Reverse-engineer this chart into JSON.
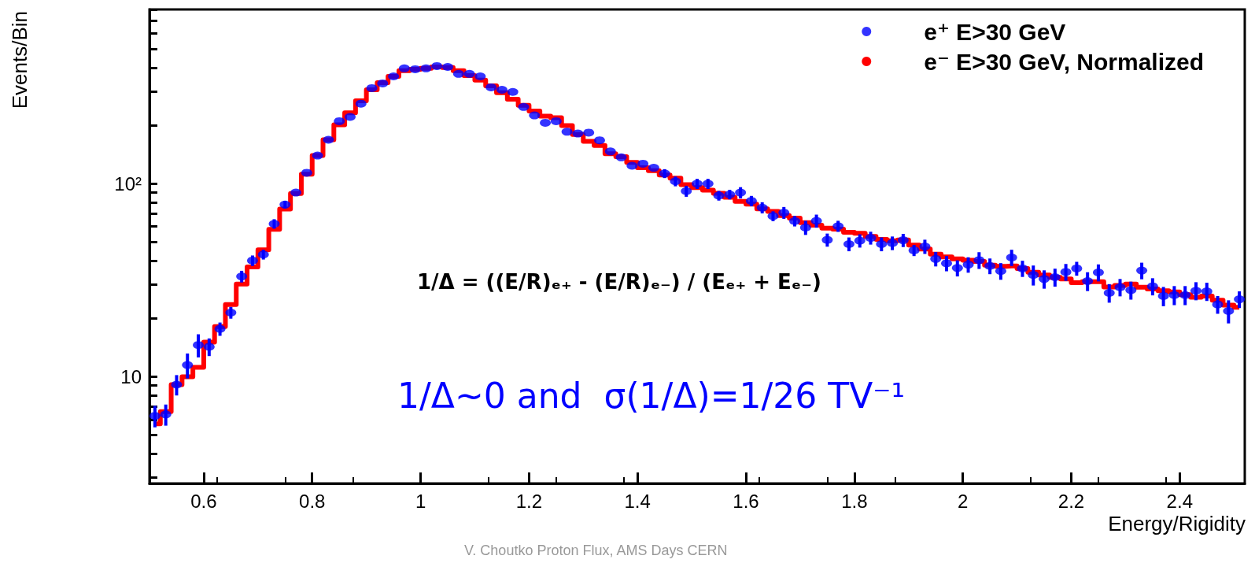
{
  "chart_data": {
    "type": "scatter",
    "xlabel": "Energy/Rigidity",
    "ylabel": "Events/Bin",
    "annotations": [
      "1/Δ = ((E/R)ₑ₊ - (E/R)ₑ₋) / (Eₑ₊ + Eₑ₋)",
      "1/Δ~0 and  σ(1/Δ)=1/26 TV⁻¹",
      "V. Choutko Proton Flux, AMS Days CERN"
    ],
    "x": [
      0.51,
      0.53,
      0.55,
      0.57,
      0.59,
      0.61,
      0.63,
      0.65,
      0.67,
      0.69,
      0.71,
      0.73,
      0.75,
      0.77,
      0.79,
      0.81,
      0.83,
      0.85,
      0.87,
      0.89,
      0.91,
      0.93,
      0.95,
      0.97,
      0.99,
      1.01,
      1.03,
      1.05,
      1.07,
      1.09,
      1.11,
      1.13,
      1.15,
      1.17,
      1.19,
      1.21,
      1.23,
      1.25,
      1.27,
      1.29,
      1.31,
      1.33,
      1.35,
      1.37,
      1.39,
      1.41,
      1.43,
      1.45,
      1.47,
      1.49,
      1.51,
      1.53,
      1.55,
      1.57,
      1.59,
      1.61,
      1.63,
      1.65,
      1.67,
      1.69,
      1.71,
      1.73,
      1.75,
      1.77,
      1.79,
      1.81,
      1.83,
      1.85,
      1.87,
      1.89,
      1.91,
      1.93,
      1.95,
      1.97,
      1.99,
      2.01,
      2.03,
      2.05,
      2.07,
      2.09,
      2.11,
      2.13,
      2.15,
      2.17,
      2.19,
      2.21,
      2.23,
      2.25,
      2.27,
      2.29,
      2.31,
      2.33,
      2.35,
      2.37,
      2.39,
      2.41,
      2.43,
      2.45,
      2.47,
      2.49,
      2.51
    ],
    "series": [
      {
        "name": "e⁻ E>30 GeV, Normalized",
        "type": "step",
        "color": "#ff0000",
        "marker": "none",
        "values": [
          5.7,
          6.6,
          9.1,
          10.0,
          11.2,
          15.1,
          18.2,
          23.7,
          30.2,
          37.1,
          45.5,
          58,
          74,
          89,
          112,
          140,
          169,
          202,
          233,
          269,
          307,
          334,
          360,
          385,
          392,
          396,
          403,
          400,
          385,
          363,
          344,
          322,
          296,
          274,
          255,
          238,
          224,
          220,
          200,
          180,
          166,
          158,
          143,
          138,
          129,
          121,
          117,
          111,
          107,
          98.9,
          95.6,
          92.7,
          89.3,
          85.2,
          81,
          78.4,
          74.2,
          71.9,
          68.4,
          66.3,
          62.9,
          61,
          58.9,
          58.2,
          56,
          55.4,
          53.3,
          51.5,
          50.7,
          51.2,
          48.1,
          45.9,
          43.2,
          41.8,
          40.8,
          40.2,
          39.6,
          37.9,
          37.3,
          37.5,
          36.4,
          34.8,
          33.7,
          32.7,
          32.1,
          30.7,
          31.1,
          31.1,
          29.2,
          29.7,
          30.2,
          29.1,
          28.5,
          27.9,
          27.5,
          26.6,
          25.8,
          26.2,
          24.9,
          23.5,
          22.9
        ]
      },
      {
        "name": "e⁺ E>30 GeV",
        "color": "#0000ff",
        "marker": "circle",
        "values": [
          6.27,
          6.38,
          9.1,
          11.5,
          14.6,
          14.3,
          17.7,
          21.5,
          33.1,
          40,
          43,
          62,
          78,
          90,
          114,
          140,
          169,
          211,
          222,
          260,
          313,
          331,
          360,
          396,
          392,
          396,
          407,
          403,
          371,
          371,
          360,
          316,
          307,
          299,
          250,
          226,
          207,
          211,
          186,
          182,
          184,
          168,
          147,
          137,
          124,
          127,
          121,
          113,
          103,
          91.6,
          100,
          100,
          86.8,
          88,
          90,
          81.5,
          75.2,
          68,
          70.8,
          64.1,
          59.3,
          64.2,
          51.2,
          60.3,
          48.7,
          50.7,
          52.4,
          48.7,
          49.3,
          51,
          45.2,
          47.3,
          40.8,
          38.7,
          36.6,
          38.1,
          40.2,
          37.5,
          35.3,
          41.5,
          36.4,
          33.7,
          32.1,
          32.8,
          34.9,
          36.4,
          31.3,
          34.7,
          27.2,
          29.1,
          28.1,
          35.5,
          29.4,
          26.2,
          26.5,
          26.5,
          27.9,
          27.7,
          23.7,
          21.9,
          25.2
        ],
        "errors": [
          0.8,
          0.8,
          1.1,
          1.7,
          2,
          1.5,
          1.4,
          1.5,
          2.3,
          2.5,
          2.5,
          3.5,
          3.5,
          null,
          null,
          null,
          null,
          null,
          null,
          null,
          null,
          null,
          null,
          null,
          null,
          null,
          null,
          null,
          null,
          null,
          null,
          null,
          null,
          null,
          null,
          null,
          null,
          null,
          null,
          null,
          null,
          null,
          null,
          null,
          null,
          null,
          null,
          6,
          6,
          6,
          6,
          6,
          5,
          5,
          6,
          5,
          5,
          4,
          5,
          4,
          5,
          5,
          4,
          4,
          4,
          4,
          4,
          4,
          4,
          4,
          3,
          4,
          3.5,
          3.5,
          3.5,
          3.5,
          4,
          3.5,
          3.5,
          4,
          3.5,
          4,
          3.5,
          3.5,
          3.5,
          3,
          3.5,
          3.5,
          3,
          3,
          3,
          3.5,
          3,
          3,
          3,
          3,
          3,
          3,
          2.5,
          3,
          2.5
        ]
      }
    ],
    "log": "y",
    "xlim": [
      0.5,
      2.52
    ],
    "xticks": [
      0.6,
      0.8,
      1,
      1.2,
      1.4,
      1.6,
      1.8,
      2,
      2.2,
      2.4
    ],
    "ylim": [
      2.8,
      800
    ],
    "yticks": [
      {
        "value": 3,
        "label": null
      },
      {
        "value": 4,
        "label": null
      },
      {
        "value": 5,
        "label": null
      },
      {
        "value": 6,
        "label": null
      },
      {
        "value": 7,
        "label": null
      },
      {
        "value": 8,
        "label": null
      },
      {
        "value": 9,
        "label": null
      },
      10,
      {
        "value": 20,
        "label": null
      },
      {
        "value": 30,
        "label": null
      },
      {
        "value": 40,
        "label": null
      },
      {
        "value": 50,
        "label": null
      },
      {
        "value": 60,
        "label": null
      },
      {
        "value": 70,
        "label": null
      },
      {
        "value": 80,
        "label": null
      },
      {
        "value": 90,
        "label": null
      },
      {
        "value": 100,
        "label": "10²"
      },
      {
        "value": 200,
        "label": null
      },
      {
        "value": 300,
        "label": null
      },
      {
        "value": 400,
        "label": null
      },
      {
        "value": 500,
        "label": null
      },
      {
        "value": 600,
        "label": null
      },
      {
        "value": 700,
        "label": null
      },
      {
        "value": 800,
        "label": null
      }
    ],
    "grid": false,
    "legend": "top right"
  }
}
